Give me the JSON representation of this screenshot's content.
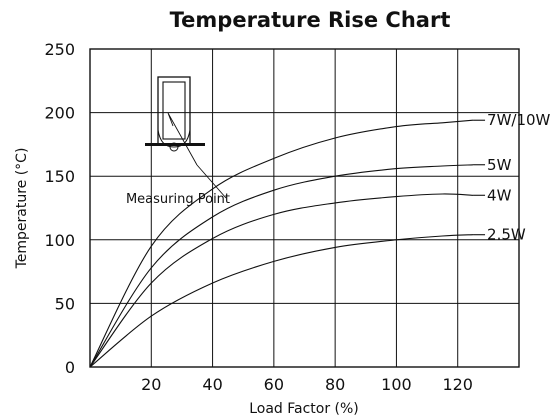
{
  "chart_data": {
    "type": "line",
    "title": "Temperature Rise Chart",
    "xlabel": "Load Factor (%)",
    "ylabel": "Temperature (°C)",
    "xlim": [
      0,
      140
    ],
    "ylim": [
      0,
      250
    ],
    "xticks": [
      "20",
      "40",
      "60",
      "80",
      "100",
      "120"
    ],
    "yticks": [
      "0",
      "50",
      "100",
      "150",
      "200",
      "250"
    ],
    "grid": true,
    "series": [
      {
        "name": "7W/10W",
        "x": [
          0,
          20,
          40,
          60,
          80,
          100,
          115,
          125
        ],
        "y": [
          0,
          95,
          140,
          164,
          180,
          189,
          192,
          194
        ]
      },
      {
        "name": "5W",
        "x": [
          0,
          20,
          40,
          60,
          80,
          100,
          115,
          125
        ],
        "y": [
          0,
          78,
          118,
          139,
          150,
          156,
          158,
          159
        ]
      },
      {
        "name": "4W",
        "x": [
          0,
          20,
          40,
          60,
          80,
          100,
          115,
          125
        ],
        "y": [
          0,
          66,
          101,
          120,
          129,
          134,
          136,
          135
        ]
      },
      {
        "name": "2.5W",
        "x": [
          0,
          20,
          40,
          60,
          80,
          100,
          115,
          125
        ],
        "y": [
          0,
          40,
          66,
          83,
          94,
          100,
          103,
          104
        ]
      }
    ],
    "annotation": "Measuring Point",
    "inset_icon": "resistor-measuring-point-icon"
  }
}
